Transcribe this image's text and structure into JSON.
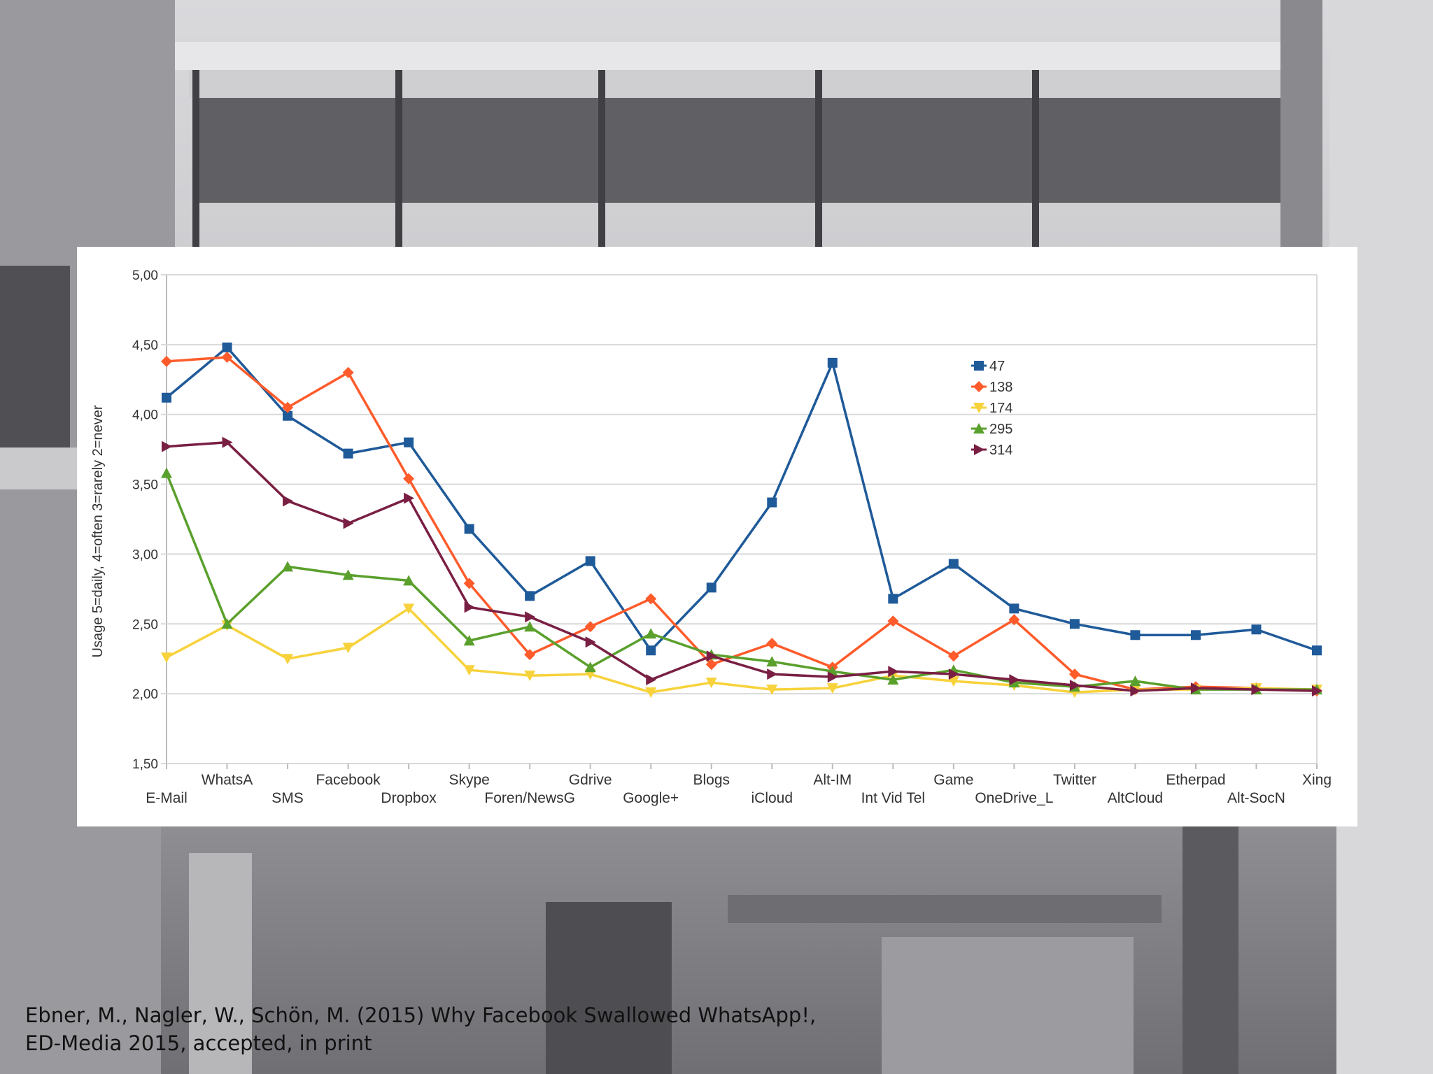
{
  "citation": {
    "line1": "Ebner, M., Nagler, W., Schön, M. (2015) Why Facebook Swallowed WhatsApp!,",
    "line2": "ED-Media 2015, accepted, in print"
  },
  "chart_data": {
    "type": "line",
    "ylabel": "Usage 5=daily, 4=often 3=rarely 2=never",
    "ylim": [
      1.5,
      5.0
    ],
    "yticks": [
      "5,00",
      "4,50",
      "4,00",
      "3,50",
      "3,00",
      "2,50",
      "2,00",
      "1,50"
    ],
    "grid": true,
    "legend_position": "top-right",
    "categories": [
      "E-Mail",
      "WhatsA",
      "SMS",
      "Facebook",
      "Dropbox",
      "Skype",
      "Foren/NewsG",
      "Gdrive",
      "Google+",
      "Blogs",
      "iCloud",
      "Alt-IM",
      "Int Vid Tel",
      "Game",
      "OneDrive_L",
      "Twitter",
      "AltCloud",
      "Etherpad",
      "Alt-SocN",
      "Xing"
    ],
    "series": [
      {
        "name": "47",
        "color": "#1f5a99",
        "marker": "square",
        "values": [
          4.12,
          4.48,
          3.99,
          3.72,
          3.8,
          3.18,
          2.7,
          2.95,
          2.31,
          2.76,
          3.37,
          4.37,
          2.68,
          2.93,
          2.61,
          2.5,
          2.42,
          2.42,
          2.46,
          2.31
        ]
      },
      {
        "name": "138",
        "color": "#ff5b2b",
        "marker": "diamond",
        "values": [
          4.38,
          4.41,
          4.05,
          4.3,
          3.54,
          2.79,
          2.28,
          2.48,
          2.68,
          2.21,
          2.36,
          2.19,
          2.52,
          2.27,
          2.53,
          2.14,
          2.03,
          2.05,
          2.04,
          2.02
        ]
      },
      {
        "name": "174",
        "color": "#f7d23b",
        "marker": "triangle-down",
        "values": [
          2.26,
          2.49,
          2.25,
          2.33,
          2.61,
          2.17,
          2.13,
          2.14,
          2.01,
          2.08,
          2.03,
          2.04,
          2.13,
          2.09,
          2.06,
          2.01,
          2.03,
          2.03,
          2.04,
          2.03
        ]
      },
      {
        "name": "295",
        "color": "#5aa02c",
        "marker": "triangle-up",
        "values": [
          3.58,
          2.5,
          2.91,
          2.85,
          2.81,
          2.38,
          2.48,
          2.19,
          2.43,
          2.28,
          2.23,
          2.16,
          2.1,
          2.17,
          2.08,
          2.05,
          2.09,
          2.03,
          2.03,
          2.03
        ]
      },
      {
        "name": "314",
        "color": "#7a1f44",
        "marker": "triangle-right",
        "values": [
          3.77,
          3.8,
          3.38,
          3.22,
          3.4,
          2.62,
          2.55,
          2.37,
          2.1,
          2.27,
          2.14,
          2.12,
          2.16,
          2.14,
          2.1,
          2.06,
          2.02,
          2.04,
          2.03,
          2.02
        ]
      }
    ]
  }
}
